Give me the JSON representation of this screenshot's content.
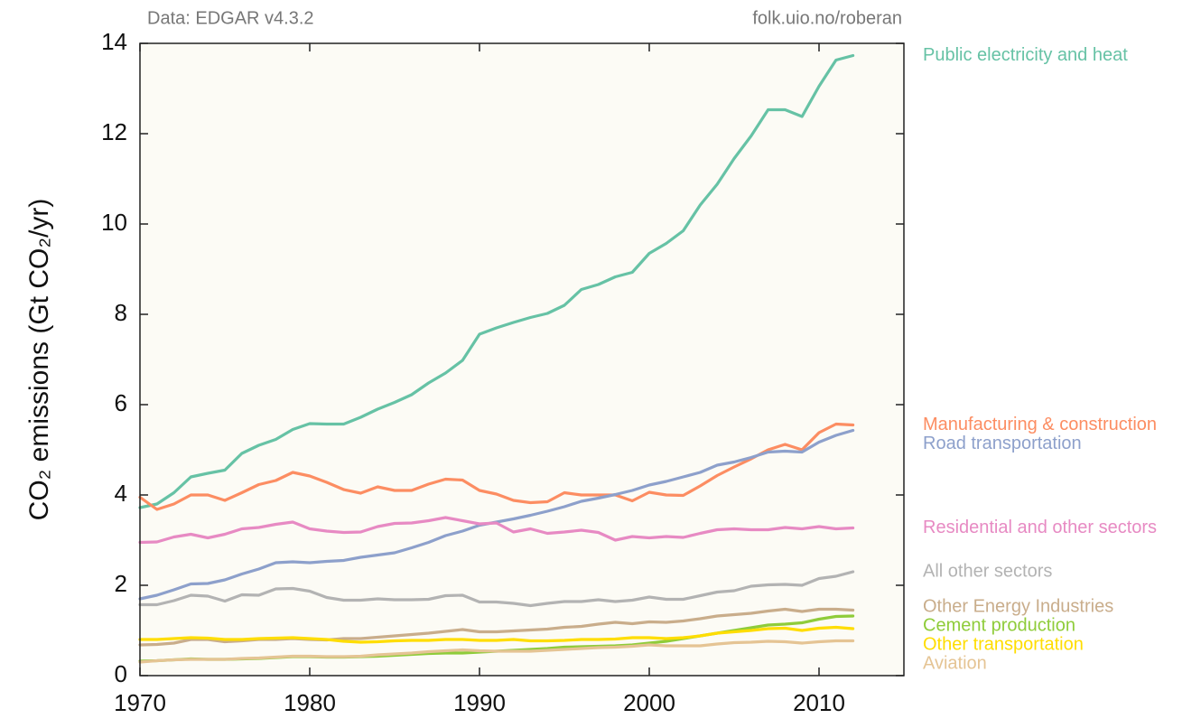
{
  "chart_data": {
    "type": "line",
    "annotations": [
      "Data: EDGAR v4.3.2",
      "folk.uio.no/roberan"
    ],
    "ylabel": "CO₂ emissions (Gt CO₂/yr)",
    "x": [
      1970,
      1971,
      1972,
      1973,
      1974,
      1975,
      1976,
      1977,
      1978,
      1979,
      1980,
      1981,
      1982,
      1983,
      1984,
      1985,
      1986,
      1987,
      1988,
      1989,
      1990,
      1991,
      1992,
      1993,
      1994,
      1995,
      1996,
      1997,
      1998,
      1999,
      2000,
      2001,
      2002,
      2003,
      2004,
      2005,
      2006,
      2007,
      2008,
      2009,
      2010,
      2011,
      2012
    ],
    "xlim": [
      1970,
      2015
    ],
    "xticks": [
      1970,
      1980,
      1990,
      2000,
      2010
    ],
    "ylim": [
      0,
      14
    ],
    "yticks": [
      0,
      2,
      4,
      6,
      8,
      10,
      12,
      14
    ],
    "series": [
      {
        "name": "Public electricity and heat",
        "color": "#66c2a5",
        "values": [
          3.72,
          3.8,
          4.05,
          4.4,
          4.48,
          4.55,
          4.92,
          5.1,
          5.23,
          5.45,
          5.58,
          5.57,
          5.57,
          5.72,
          5.9,
          6.05,
          6.22,
          6.48,
          6.7,
          6.98,
          7.56,
          7.7,
          7.82,
          7.93,
          8.02,
          8.2,
          8.55,
          8.66,
          8.83,
          8.93,
          9.35,
          9.57,
          9.85,
          10.42,
          10.88,
          11.45,
          11.95,
          12.53,
          12.53,
          12.38,
          13.05,
          13.63,
          13.73
        ]
      },
      {
        "name": "Manufacturing & construction",
        "color": "#fc8d62",
        "values": [
          3.95,
          3.68,
          3.8,
          4.0,
          4.0,
          3.88,
          4.05,
          4.23,
          4.32,
          4.5,
          4.42,
          4.28,
          4.12,
          4.04,
          4.18,
          4.1,
          4.1,
          4.24,
          4.35,
          4.33,
          4.1,
          4.02,
          3.88,
          3.83,
          3.85,
          4.05,
          4.0,
          4.0,
          4.0,
          3.87,
          4.06,
          4.0,
          3.99,
          4.2,
          4.43,
          4.62,
          4.8,
          5.0,
          5.12,
          5.0,
          5.38,
          5.57,
          5.55
        ]
      },
      {
        "name": "Road transportation",
        "color": "#8da0cb",
        "values": [
          1.7,
          1.78,
          1.9,
          2.03,
          2.04,
          2.12,
          2.25,
          2.36,
          2.5,
          2.52,
          2.5,
          2.53,
          2.55,
          2.62,
          2.67,
          2.72,
          2.83,
          2.95,
          3.1,
          3.2,
          3.33,
          3.4,
          3.47,
          3.55,
          3.64,
          3.74,
          3.86,
          3.93,
          4.01,
          4.1,
          4.22,
          4.3,
          4.4,
          4.5,
          4.66,
          4.73,
          4.83,
          4.95,
          4.97,
          4.95,
          5.17,
          5.32,
          5.43
        ]
      },
      {
        "name": "Residential and other sectors",
        "color": "#e78ac3",
        "values": [
          2.95,
          2.96,
          3.07,
          3.13,
          3.05,
          3.13,
          3.25,
          3.28,
          3.35,
          3.4,
          3.25,
          3.2,
          3.17,
          3.18,
          3.3,
          3.37,
          3.38,
          3.43,
          3.5,
          3.43,
          3.36,
          3.38,
          3.18,
          3.25,
          3.15,
          3.18,
          3.22,
          3.17,
          3.0,
          3.08,
          3.05,
          3.08,
          3.06,
          3.15,
          3.23,
          3.25,
          3.23,
          3.23,
          3.28,
          3.25,
          3.3,
          3.25,
          3.27
        ]
      },
      {
        "name": "All other sectors",
        "color": "#b3b3b3",
        "values": [
          1.57,
          1.57,
          1.66,
          1.78,
          1.76,
          1.65,
          1.79,
          1.78,
          1.92,
          1.93,
          1.87,
          1.73,
          1.67,
          1.67,
          1.7,
          1.68,
          1.68,
          1.69,
          1.77,
          1.78,
          1.63,
          1.63,
          1.6,
          1.55,
          1.6,
          1.64,
          1.64,
          1.68,
          1.64,
          1.67,
          1.74,
          1.69,
          1.69,
          1.77,
          1.85,
          1.88,
          1.98,
          2.01,
          2.02,
          2.0,
          2.15,
          2.2,
          2.3
        ]
      },
      {
        "name": "Other Energy Industries",
        "color": "#c9ad8b",
        "values": [
          0.68,
          0.69,
          0.72,
          0.8,
          0.8,
          0.75,
          0.77,
          0.8,
          0.8,
          0.82,
          0.8,
          0.79,
          0.82,
          0.82,
          0.85,
          0.88,
          0.91,
          0.94,
          0.98,
          1.02,
          0.97,
          0.97,
          0.99,
          1.01,
          1.03,
          1.07,
          1.09,
          1.14,
          1.18,
          1.15,
          1.19,
          1.18,
          1.21,
          1.26,
          1.32,
          1.35,
          1.38,
          1.43,
          1.47,
          1.42,
          1.47,
          1.47,
          1.45
        ]
      },
      {
        "name": "Cement production",
        "color": "#8fcc3a",
        "values": [
          0.32,
          0.33,
          0.35,
          0.37,
          0.36,
          0.36,
          0.37,
          0.38,
          0.4,
          0.42,
          0.42,
          0.41,
          0.41,
          0.42,
          0.43,
          0.45,
          0.47,
          0.49,
          0.5,
          0.5,
          0.52,
          0.54,
          0.56,
          0.58,
          0.6,
          0.63,
          0.64,
          0.65,
          0.66,
          0.68,
          0.72,
          0.76,
          0.82,
          0.88,
          0.94,
          1.0,
          1.06,
          1.12,
          1.14,
          1.17,
          1.25,
          1.31,
          1.32
        ]
      },
      {
        "name": "Other transportation",
        "color": "#ffdd00",
        "values": [
          0.8,
          0.8,
          0.82,
          0.84,
          0.83,
          0.8,
          0.8,
          0.82,
          0.83,
          0.84,
          0.82,
          0.8,
          0.76,
          0.74,
          0.75,
          0.77,
          0.78,
          0.78,
          0.8,
          0.8,
          0.78,
          0.78,
          0.8,
          0.77,
          0.77,
          0.78,
          0.8,
          0.8,
          0.81,
          0.84,
          0.84,
          0.82,
          0.84,
          0.88,
          0.94,
          0.97,
          1.0,
          1.04,
          1.05,
          1.0,
          1.05,
          1.07,
          1.04
        ]
      },
      {
        "name": "Aviation",
        "color": "#e5c494",
        "values": [
          0.3,
          0.33,
          0.35,
          0.36,
          0.36,
          0.36,
          0.38,
          0.39,
          0.41,
          0.43,
          0.43,
          0.42,
          0.42,
          0.43,
          0.46,
          0.48,
          0.5,
          0.53,
          0.55,
          0.57,
          0.55,
          0.54,
          0.54,
          0.54,
          0.56,
          0.58,
          0.6,
          0.62,
          0.63,
          0.65,
          0.68,
          0.66,
          0.66,
          0.66,
          0.7,
          0.73,
          0.74,
          0.76,
          0.75,
          0.72,
          0.75,
          0.77,
          0.77
        ]
      }
    ]
  }
}
